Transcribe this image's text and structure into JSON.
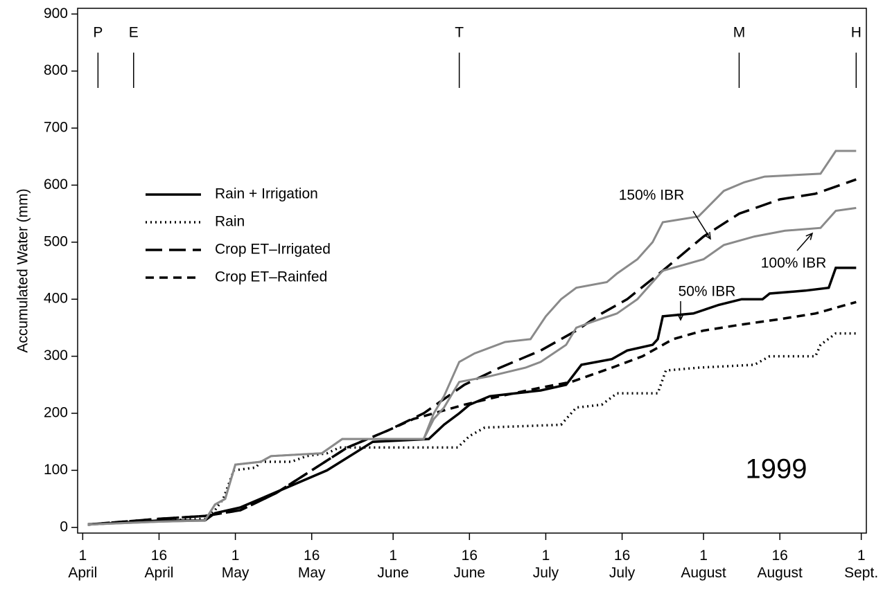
{
  "chart_data": {
    "type": "line",
    "ylabel": "Accumulated Water (mm)",
    "inset_label": "1999",
    "xlim": [
      -1,
      154
    ],
    "ylim": [
      -10,
      910
    ],
    "xticks": [
      {
        "value": 0,
        "label": "1\nApril"
      },
      {
        "value": 15,
        "label": "16\nApril"
      },
      {
        "value": 30,
        "label": "1\nMay"
      },
      {
        "value": 45,
        "label": "16\nMay"
      },
      {
        "value": 61,
        "label": "1\nJune"
      },
      {
        "value": 76,
        "label": "16\nJune"
      },
      {
        "value": 91,
        "label": "1\nJuly"
      },
      {
        "value": 106,
        "label": "16\nJuly"
      },
      {
        "value": 122,
        "label": "1\nAugust"
      },
      {
        "value": 137,
        "label": "16\nAugust"
      },
      {
        "value": 153,
        "label": "1\nSept."
      }
    ],
    "yticks": [
      0,
      100,
      200,
      300,
      400,
      500,
      600,
      700,
      800,
      900
    ],
    "stages": [
      {
        "label": "P",
        "x": 3
      },
      {
        "label": "E",
        "x": 10
      },
      {
        "label": "T",
        "x": 74
      },
      {
        "label": "M",
        "x": 129
      },
      {
        "label": "H",
        "x": 152
      }
    ],
    "annotations": [
      "150% IBR",
      "100% IBR",
      "50% IBR"
    ],
    "series": [
      {
        "name": "Rain + Irrigation",
        "color": "#000000",
        "dash": "solid",
        "x": [
          1,
          15,
          24,
          26,
          31,
          48,
          57,
          68,
          71,
          74,
          76,
          80,
          90,
          95,
          98,
          104,
          107,
          112,
          113,
          114,
          120,
          125,
          129.5,
          133.6,
          135,
          142,
          146.6,
          148,
          152
        ],
        "values": [
          5,
          12,
          12,
          25,
          35,
          100,
          150,
          155,
          180,
          200,
          215,
          230,
          240,
          250,
          285,
          295,
          310,
          320,
          330,
          370,
          375,
          390,
          400,
          400,
          410,
          415,
          420,
          455,
          455
        ]
      },
      {
        "name": "Rain",
        "color": "#000000",
        "dash": "dotted",
        "x": [
          1,
          15,
          24,
          26,
          27.6,
          29.7,
          34,
          35,
          41,
          44,
          48,
          50.5,
          73.7,
          76,
          79,
          94,
          97,
          102,
          105,
          113,
          114.6,
          121,
          132,
          135,
          144,
          145,
          148,
          152
        ],
        "values": [
          5,
          12,
          15,
          30,
          50,
          100,
          105,
          115,
          115,
          125,
          130,
          140,
          140,
          160,
          175,
          180,
          210,
          215,
          235,
          235,
          275,
          280,
          285,
          300,
          300,
          320,
          340,
          340
        ]
      },
      {
        "name": "Crop ET–Irrigated",
        "color": "#000000",
        "dash": "long",
        "x": [
          1,
          15,
          24,
          31,
          38,
          45,
          52,
          60,
          67,
          75,
          82,
          90,
          97,
          102,
          107,
          114,
          122,
          129,
          137,
          144,
          152
        ],
        "values": [
          5,
          15,
          20,
          30,
          60,
          100,
          140,
          170,
          200,
          250,
          280,
          310,
          345,
          375,
          400,
          450,
          510,
          550,
          575,
          585,
          610
        ]
      },
      {
        "name": "Crop ET–Rainfed",
        "color": "#000000",
        "dash": "short",
        "x": [
          1,
          15,
          24,
          31,
          38,
          45,
          52,
          60,
          65,
          75,
          82,
          90,
          96,
          104,
          110,
          116,
          122,
          129,
          137,
          144,
          152
        ],
        "values": [
          5,
          15,
          20,
          30,
          60,
          100,
          140,
          170,
          190,
          215,
          230,
          245,
          255,
          280,
          300,
          330,
          345,
          355,
          365,
          375,
          395
        ]
      },
      {
        "color": "#8a8a8a",
        "dash": "solid",
        "x": [
          1,
          15,
          24,
          26,
          28,
          30,
          35,
          37,
          47,
          51,
          67,
          69,
          71,
          74,
          77,
          83,
          88,
          91,
          94,
          97,
          103,
          105,
          109,
          112,
          114,
          121,
          126,
          130,
          134,
          145,
          148,
          152
        ],
        "values": [
          5,
          10,
          12,
          40,
          50,
          110,
          115,
          125,
          130,
          155,
          155,
          200,
          230,
          290,
          305,
          325,
          330,
          370,
          400,
          420,
          430,
          445,
          470,
          500,
          535,
          545,
          590,
          605,
          615,
          620,
          660,
          660
        ]
      },
      {
        "color": "#8a8a8a",
        "dash": "solid",
        "x": [
          1,
          15,
          24,
          26,
          28,
          30,
          35,
          37,
          47,
          51,
          67,
          69,
          71,
          74,
          80,
          87,
          90,
          95,
          97,
          100,
          105,
          109,
          114,
          118,
          122,
          126,
          132,
          138,
          145,
          148,
          152
        ],
        "values": [
          5,
          10,
          12,
          40,
          50,
          110,
          115,
          125,
          130,
          155,
          155,
          190,
          210,
          255,
          265,
          280,
          290,
          320,
          350,
          360,
          375,
          400,
          450,
          460,
          470,
          495,
          510,
          520,
          525,
          555,
          560
        ]
      }
    ]
  }
}
